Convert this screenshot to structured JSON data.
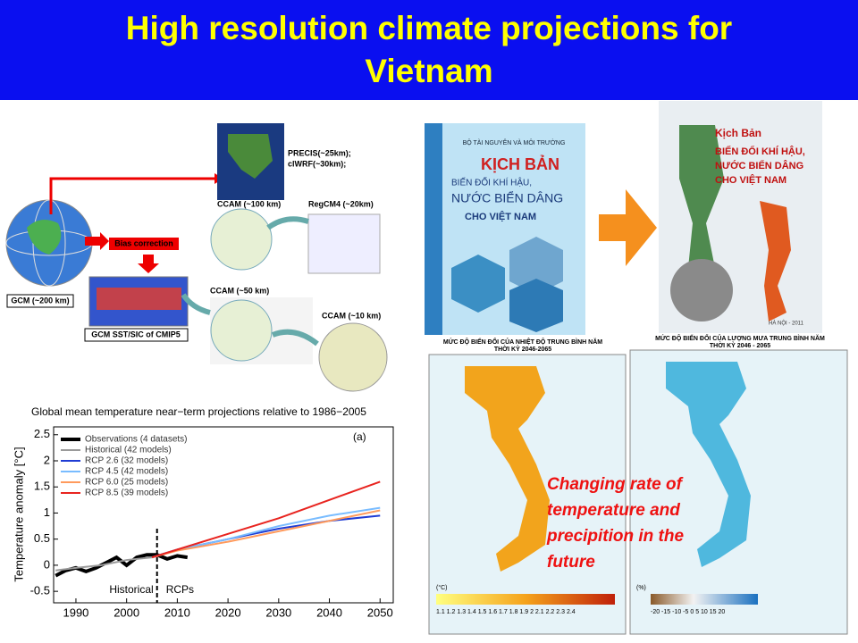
{
  "header": {
    "title_line1": "High resolution climate projections for",
    "title_line2": "Vietnam"
  },
  "diagram": {
    "gcm": "GCM (~200 km)",
    "bias": "Bias correction",
    "sst": "GCM SST/SIC of CMIP5",
    "precis_1": "PRECIS(~25km);",
    "precis_2": "clWRF(~30km);",
    "ccam100": "CCAM (~100 km)",
    "regcm": "RegCM4 (~20km)",
    "ccam50": "CCAM (~50 km)",
    "ccam10": "CCAM (~10 km)"
  },
  "chart_data": {
    "type": "line",
    "title": "Global mean temperature near−term projections relative to 1986−2005",
    "y_label": "Temperature anomaly [°C]",
    "panel_label": "(a)",
    "annotation_left": "Historical",
    "annotation_right": "RCPs",
    "divider_x": 2006,
    "xlim": [
      1985.6,
      2052.6
    ],
    "ylim": [
      -0.72,
      2.65
    ],
    "xticks": [
      1990,
      2000,
      2010,
      2020,
      2030,
      2040,
      2050
    ],
    "yticks": [
      -0.5,
      0,
      0.5,
      1,
      1.5,
      2,
      2.5
    ],
    "series": [
      {
        "name": "Observations (4 datasets)",
        "color": "#000000",
        "width": 4,
        "x": [
          1986,
          1988,
          1990,
          1992,
          1994,
          1996,
          1998,
          2000,
          2002,
          2004,
          2006,
          2008,
          2010,
          2012
        ],
        "values": [
          -0.2,
          -0.1,
          -0.05,
          -0.12,
          -0.05,
          0.05,
          0.15,
          0.0,
          0.15,
          0.2,
          0.2,
          0.12,
          0.18,
          0.15
        ]
      },
      {
        "name": "Historical (42 models)",
        "color": "#9a9a9a",
        "width": 2,
        "x": [
          1986,
          1990,
          1995,
          2000,
          2005
        ],
        "values": [
          -0.1,
          -0.05,
          0.0,
          0.1,
          0.15
        ]
      },
      {
        "name": "RCP 2.6 (32 models)",
        "color": "#1f3cd4",
        "width": 2,
        "x": [
          2005,
          2010,
          2020,
          2030,
          2040,
          2050
        ],
        "values": [
          0.15,
          0.3,
          0.5,
          0.7,
          0.85,
          0.95
        ]
      },
      {
        "name": "RCP 4.5 (42 models)",
        "color": "#79bcff",
        "width": 2,
        "x": [
          2005,
          2010,
          2020,
          2030,
          2040,
          2050
        ],
        "values": [
          0.15,
          0.3,
          0.5,
          0.75,
          0.95,
          1.1
        ]
      },
      {
        "name": "RCP 6.0 (25 models)",
        "color": "#ff9a5c",
        "width": 2,
        "x": [
          2005,
          2010,
          2020,
          2030,
          2040,
          2050
        ],
        "values": [
          0.15,
          0.28,
          0.45,
          0.65,
          0.85,
          1.05
        ]
      },
      {
        "name": "RCP 8.5 (39 models)",
        "color": "#e8241f",
        "width": 2,
        "x": [
          2005,
          2010,
          2020,
          2030,
          2040,
          2050
        ],
        "values": [
          0.15,
          0.3,
          0.6,
          0.9,
          1.25,
          1.6
        ]
      }
    ]
  },
  "books": {
    "cover1_ministry": "BỘ TÀI NGUYÊN VÀ MÔI TRƯỜNG",
    "cover1_title": "KỊCH BẢN",
    "cover1_sub1": "BIẾN ĐỔI KHÍ HẬU,",
    "cover1_sub2": "NƯỚC BIỂN DÂNG",
    "cover1_sub3": "CHO VIỆT NAM",
    "cover2_title": "Kịch Bản",
    "cover2_sub1": "BIẾN ĐỔI KHÍ HẬU,",
    "cover2_sub2": "NƯỚC BIỂN DÂNG",
    "cover2_sub3": "CHO VIỆT NAM",
    "cover2_place": "HÀ NỘI - 2011"
  },
  "maps": {
    "temp_caption1": "MỨC ĐỘ BIẾN ĐỔI CỦA NHIỆT ĐỘ TRUNG BÌNH NĂM",
    "temp_caption2": "THỜI KỲ 2046-2065",
    "temp_unit": "(°C)",
    "temp_scale": "1.1 1.2 1.3 1.4 1.5 1.6 1.7 1.8 1.9 2 2.1 2.2 2.3 2.4",
    "rain_caption1": "MỨC ĐỘ BIẾN ĐỔI CỦA LƯỢNG MƯA TRUNG BÌNH NĂM",
    "rain_caption2": "THỜI KỲ 2046 - 2065",
    "rain_unit": "(%)",
    "rain_scale": "-20 -15 -10 -5 0 5 10 15 20",
    "overlay_line1": "Changing rate of",
    "overlay_line2": "temperature and",
    "overlay_line3": "precipition in the",
    "overlay_line4": "future"
  }
}
